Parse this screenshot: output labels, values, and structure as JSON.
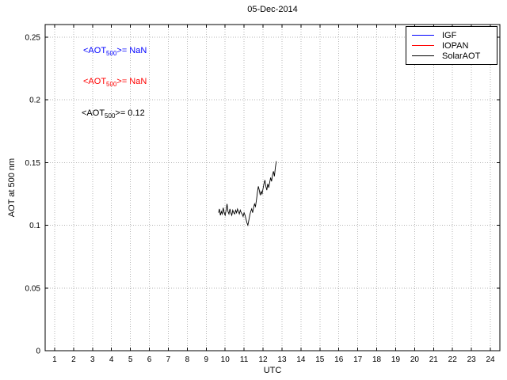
{
  "chart_data": {
    "type": "line",
    "title": "05-Dec-2014",
    "xlabel": "UTC",
    "ylabel": "AOT at 500 nm",
    "xlim": [
      0.5,
      24.5
    ],
    "ylim": [
      0,
      0.26
    ],
    "xticks": [
      1,
      2,
      3,
      4,
      5,
      6,
      7,
      8,
      9,
      10,
      11,
      12,
      13,
      14,
      15,
      16,
      17,
      18,
      19,
      20,
      21,
      22,
      23,
      24
    ],
    "xtick_labels": [
      "1",
      "2",
      "3",
      "4",
      "5",
      "6",
      "7",
      "8",
      "9",
      "10",
      "11",
      "12",
      "13",
      "14",
      "15",
      "16",
      "17",
      "18",
      "19",
      "20",
      "21",
      "22",
      "23",
      "24"
    ],
    "yticks": [
      0,
      0.05,
      0.1,
      0.15,
      0.2,
      0.25
    ],
    "ytick_labels": [
      "0",
      "0.05",
      "0.1",
      "0.15",
      "0.2",
      "0.25"
    ],
    "grid": true,
    "legend_position": "top-right",
    "series": [
      {
        "name": "IGF",
        "color": "#0000ff",
        "x": [],
        "y": []
      },
      {
        "name": "IOPAN",
        "color": "#ff0000",
        "x": [],
        "y": []
      },
      {
        "name": "SolarAOT",
        "color": "#000000",
        "x": [
          9.65,
          9.7,
          9.75,
          9.8,
          9.85,
          9.9,
          9.95,
          10.0,
          10.05,
          10.1,
          10.15,
          10.2,
          10.25,
          10.3,
          10.35,
          10.4,
          10.45,
          10.5,
          10.55,
          10.6,
          10.65,
          10.7,
          10.75,
          10.8,
          10.85,
          10.9,
          10.95,
          11.0,
          11.05,
          11.1,
          11.15,
          11.2,
          11.25,
          11.3,
          11.35,
          11.4,
          11.45,
          11.5,
          11.55,
          11.6,
          11.65,
          11.7,
          11.75,
          11.8,
          11.85,
          11.9,
          11.95,
          12.0,
          12.05,
          12.1,
          12.15,
          12.2,
          12.25,
          12.3,
          12.35,
          12.4,
          12.45,
          12.5,
          12.55,
          12.6,
          12.65,
          12.7
        ],
        "y": [
          0.11,
          0.113,
          0.108,
          0.111,
          0.109,
          0.114,
          0.11,
          0.108,
          0.112,
          0.117,
          0.111,
          0.109,
          0.113,
          0.11,
          0.108,
          0.112,
          0.11,
          0.109,
          0.112,
          0.11,
          0.113,
          0.111,
          0.109,
          0.112,
          0.11,
          0.109,
          0.107,
          0.11,
          0.108,
          0.105,
          0.102,
          0.1,
          0.104,
          0.108,
          0.111,
          0.113,
          0.11,
          0.114,
          0.117,
          0.115,
          0.12,
          0.126,
          0.131,
          0.128,
          0.124,
          0.127,
          0.125,
          0.129,
          0.133,
          0.136,
          0.131,
          0.128,
          0.133,
          0.13,
          0.134,
          0.138,
          0.135,
          0.14,
          0.143,
          0.139,
          0.146,
          0.151
        ]
      }
    ],
    "annotations": [
      {
        "prefix": "<AOT",
        "sub": "500",
        "suffix": ">=  NaN",
        "color": "#0000ff"
      },
      {
        "prefix": "<AOT",
        "sub": "500",
        "suffix": ">=  NaN",
        "color": "#ff0000"
      },
      {
        "prefix": "<AOT",
        "sub": "500",
        "suffix": ">= 0.12",
        "color": "#000000"
      }
    ],
    "legend": [
      {
        "label": "IGF",
        "color": "#0000ff"
      },
      {
        "label": "IOPAN",
        "color": "#ff0000"
      },
      {
        "label": "SolarAOT",
        "color": "#000000"
      }
    ]
  }
}
